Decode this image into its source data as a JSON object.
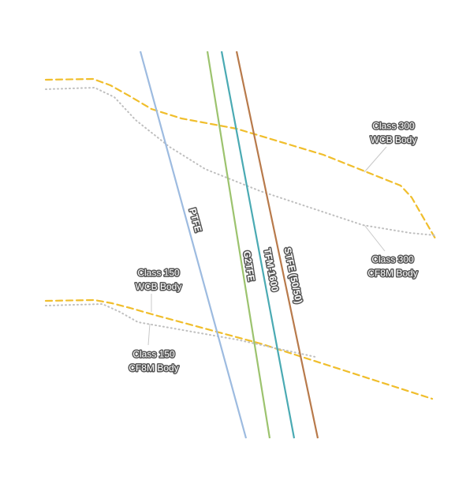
{
  "chart_data": {
    "type": "line",
    "title": "",
    "xlabel": "",
    "ylabel": "",
    "grid": false,
    "legend": "none",
    "seat_series": [
      {
        "name": "PTFE",
        "color": "#9dbbe0",
        "points": [
          [
            178,
            65
          ],
          [
            312,
            555
          ]
        ]
      },
      {
        "name": "G2TFE",
        "color": "#9cc36e",
        "points": [
          [
            263,
            65
          ],
          [
            342,
            555
          ]
        ]
      },
      {
        "name": "TFM-1600",
        "color": "#4aaab3",
        "points": [
          [
            281,
            65
          ],
          [
            373,
            555
          ]
        ]
      },
      {
        "name": "STFE (50/50)",
        "color": "#b87a4b",
        "points": [
          [
            300,
            65
          ],
          [
            403,
            555
          ]
        ]
      }
    ],
    "body_series": [
      {
        "name": "Class 300\nWCB Body",
        "color": "#f0be2c",
        "style": "dashed",
        "points": [
          [
            58,
            101
          ],
          [
            118,
            100
          ],
          [
            140,
            108
          ],
          [
            165,
            122
          ],
          [
            192,
            138
          ],
          [
            230,
            150
          ],
          [
            300,
            163
          ],
          [
            410,
            196
          ],
          [
            508,
            235
          ],
          [
            522,
            250
          ],
          [
            552,
            302
          ]
        ]
      },
      {
        "name": "Class 300\nCF8M Body",
        "color": "#bfbfbf",
        "style": "dotted",
        "points": [
          [
            58,
            113
          ],
          [
            120,
            111
          ],
          [
            145,
            123
          ],
          [
            172,
            152
          ],
          [
            215,
            186
          ],
          [
            260,
            214
          ],
          [
            330,
            242
          ],
          [
            460,
            285
          ],
          [
            520,
            295
          ],
          [
            552,
            298
          ]
        ]
      },
      {
        "name": "Class 150\nWCB Body",
        "color": "#f0be2c",
        "style": "dashed",
        "points": [
          [
            58,
            381
          ],
          [
            120,
            380
          ],
          [
            142,
            384
          ],
          [
            165,
            390
          ],
          [
            200,
            400
          ],
          [
            330,
            435
          ],
          [
            548,
            505
          ]
        ]
      },
      {
        "name": "Class 150\nCF8M Body",
        "color": "#bfbfbf",
        "style": "dotted",
        "points": [
          [
            58,
            387
          ],
          [
            130,
            385
          ],
          [
            152,
            395
          ],
          [
            175,
            408
          ],
          [
            300,
            430
          ],
          [
            400,
            452
          ]
        ]
      }
    ],
    "seat_labels": [
      {
        "text": "PTFE",
        "at": [
          247,
          279
        ],
        "angle": 74.7
      },
      {
        "text": "G2TFE",
        "at": [
          315,
          337
        ],
        "angle": 80.8
      },
      {
        "text": "TFM-1600",
        "at": [
          343,
          342
        ],
        "angle": 79.4
      },
      {
        "text": "STFE (50/50)",
        "at": [
          371,
          349
        ],
        "angle": 78.1
      }
    ],
    "body_labels": [
      {
        "lines": [
          "Class 300",
          "WCB Body"
        ],
        "at": [
          499,
          166
        ],
        "leader": [
          [
            490,
            186
          ],
          [
            462,
            218
          ]
        ]
      },
      {
        "lines": [
          "Class 300",
          "CF8M Body"
        ],
        "at": [
          498,
          335
        ],
        "leader": [
          [
            488,
            318
          ],
          [
            462,
            285
          ]
        ]
      },
      {
        "lines": [
          "Class 150",
          "WCB Body"
        ],
        "at": [
          201,
          352
        ],
        "leader": [
          [
            192,
            372
          ],
          [
            192,
            395
          ]
        ]
      },
      {
        "lines": [
          "Class 150",
          "CF8M Body"
        ],
        "at": [
          195,
          455
        ],
        "leader": [
          [
            188,
            437
          ],
          [
            190,
            410
          ]
        ]
      }
    ]
  }
}
